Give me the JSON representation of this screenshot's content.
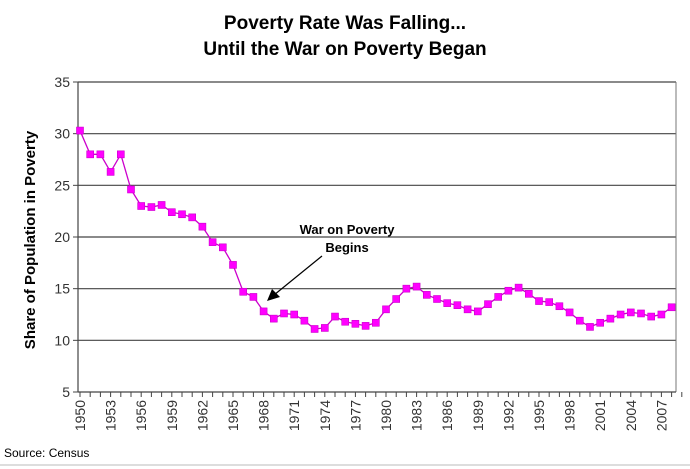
{
  "chart_data": {
    "type": "line",
    "title": [
      "Poverty Rate Was Falling...",
      "Until the War on Poverty Began"
    ],
    "ylabel": "Share of Population in Poverty",
    "xlabel": "",
    "ylim": [
      5,
      35
    ],
    "yticks": [
      5,
      10,
      15,
      20,
      25,
      30,
      35
    ],
    "xlim": [
      1950,
      2008
    ],
    "xtick_labels": [
      "1950",
      "1953",
      "1956",
      "1959",
      "1962",
      "1965",
      "1968",
      "1971",
      "1974",
      "1977",
      "1980",
      "1983",
      "1986",
      "1989",
      "1992",
      "1995",
      "1998",
      "2001",
      "2004",
      "2007"
    ],
    "grid": "horizontal",
    "line_color": "#cc00cc",
    "marker_color": "#ff00ff",
    "marker": "square",
    "x": [
      1950,
      1951,
      1952,
      1953,
      1954,
      1955,
      1956,
      1957,
      1958,
      1959,
      1960,
      1961,
      1962,
      1963,
      1964,
      1965,
      1966,
      1967,
      1968,
      1969,
      1970,
      1971,
      1972,
      1973,
      1974,
      1975,
      1976,
      1977,
      1978,
      1979,
      1980,
      1981,
      1982,
      1983,
      1984,
      1985,
      1986,
      1987,
      1988,
      1989,
      1990,
      1991,
      1992,
      1993,
      1994,
      1995,
      1996,
      1997,
      1998,
      1999,
      2000,
      2001,
      2002,
      2003,
      2004,
      2005,
      2006,
      2007,
      2008
    ],
    "values": [
      30.3,
      28.0,
      28.0,
      26.3,
      28.0,
      24.6,
      23.0,
      22.9,
      23.1,
      22.4,
      22.2,
      21.9,
      21.0,
      19.5,
      19.0,
      17.3,
      14.7,
      14.2,
      12.8,
      12.1,
      12.6,
      12.5,
      11.9,
      11.1,
      11.2,
      12.3,
      11.8,
      11.6,
      11.4,
      11.7,
      13.0,
      14.0,
      15.0,
      15.2,
      14.4,
      14.0,
      13.6,
      13.4,
      13.0,
      12.8,
      13.5,
      14.2,
      14.8,
      15.1,
      14.5,
      13.8,
      13.7,
      13.3,
      12.7,
      11.9,
      11.3,
      11.7,
      12.1,
      12.5,
      12.7,
      12.6,
      12.3,
      12.5,
      13.2
    ],
    "annotation": {
      "lines": [
        "War on Poverty",
        "Begins"
      ],
      "points_to_year": 1968
    },
    "source": "Source: Census"
  }
}
